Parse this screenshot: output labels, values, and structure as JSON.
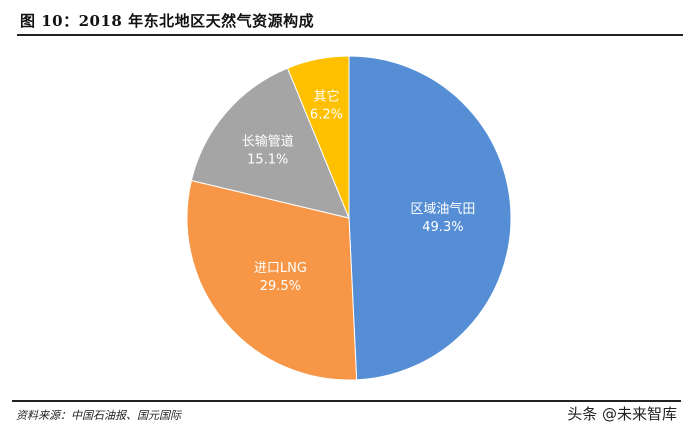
{
  "header": {
    "title": "图 10：2018 年东北地区天然气资源构成"
  },
  "footer": {
    "source": "资料来源：中国石油报、国元国际",
    "watermark": "头条 @未来智库"
  },
  "chart_data": {
    "type": "pie",
    "title": "2018 年东北地区天然气资源构成",
    "categories": [
      "区域油气田",
      "进口LNG",
      "长输管道",
      "其它"
    ],
    "values": [
      49.3,
      29.5,
      15.1,
      6.2
    ],
    "unit": "%",
    "colors": [
      "#558ED5",
      "#F79646",
      "#A5A5A5",
      "#FFC000"
    ],
    "labels": [
      {
        "name": "区域油气田",
        "pct": "49.3%"
      },
      {
        "name": "进口LNG",
        "pct": "29.5%"
      },
      {
        "name": "长输管道",
        "pct": "15.1%"
      },
      {
        "name": "其它",
        "pct": "6.2%"
      }
    ],
    "start_angle": "12 o'clock, clockwise",
    "legend": "none (data labels inside slices)"
  }
}
